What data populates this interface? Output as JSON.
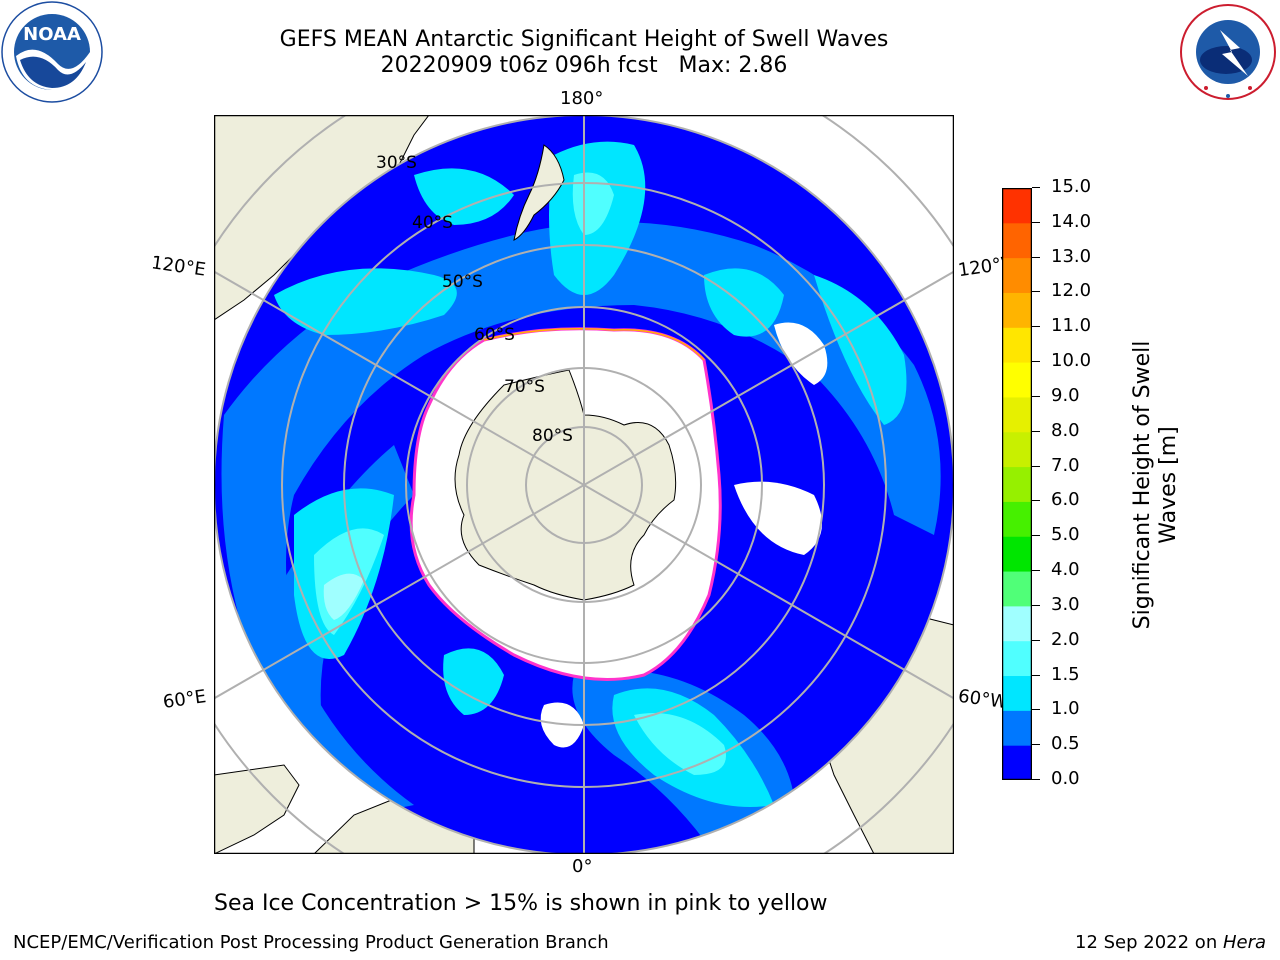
{
  "header": {
    "title_line1": "GEFS MEAN Antarctic Significant Height of Swell Waves",
    "title_line2": "20220909 t06z 096h fcst   Max: 2.86"
  },
  "logos": {
    "left": "noaa-logo",
    "left_text": "NOAA",
    "right": "nws-logo",
    "right_text": "NATIONAL WEATHER SERVICE"
  },
  "map": {
    "projection": "south-polar-stereographic",
    "longitude_labels": {
      "top": "180°",
      "bottom": "0°",
      "left_upper": "120°E",
      "left_lower": "60°E",
      "right_upper": "120°W",
      "right_lower": "60°W"
    },
    "latitude_labels": [
      "30°S",
      "40°S",
      "50°S",
      "60°S",
      "70°S",
      "80°S"
    ],
    "colors": {
      "land": "#eeeedc",
      "ocean_0_0.5": "#0000ff",
      "ocean_0.5_1.0": "#0078ff",
      "ocean_1.0_1.5": "#00e6ff",
      "ocean_1.5_2.0": "#50ffff",
      "ocean_2.0_2.5": "#a0ffff",
      "sea_ice": "#ffffff",
      "ice_edge": "#ff33cc",
      "grid": "#b0b0b0"
    }
  },
  "colorbar": {
    "title_line1": "Significant Height of Swell",
    "title_line2": "Waves [m]",
    "ticks": [
      "0.0",
      "0.5",
      "1.0",
      "1.5",
      "2.0",
      "3.0",
      "4.0",
      "5.0",
      "6.0",
      "7.0",
      "8.0",
      "9.0",
      "10.0",
      "11.0",
      "12.0",
      "13.0",
      "14.0",
      "15.0"
    ],
    "colors": [
      "#0000ff",
      "#0078ff",
      "#00e6ff",
      "#50ffff",
      "#a0ffff",
      "#50ff78",
      "#00e600",
      "#46f000",
      "#96f000",
      "#c8f000",
      "#e6f000",
      "#ffff00",
      "#ffe600",
      "#ffb400",
      "#ff8c00",
      "#ff6400",
      "#ff3200",
      "#ff0000"
    ]
  },
  "footer": {
    "note": "Sea Ice Concentration > 15% is shown in pink to yellow",
    "left": "NCEP/EMC/Verification Post Processing Product Generation Branch",
    "right_prefix": "12 Sep 2022 on ",
    "right_machine": "Hera"
  }
}
